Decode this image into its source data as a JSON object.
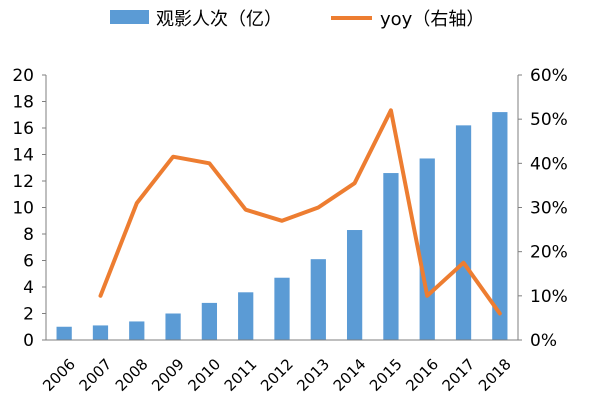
{
  "chart_data": {
    "type": "bar",
    "categories": [
      "2006",
      "2007",
      "2008",
      "2009",
      "2010",
      "2011",
      "2012",
      "2013",
      "2014",
      "2015",
      "2016",
      "2017",
      "2018"
    ],
    "series": [
      {
        "name": "观影人次（亿）",
        "type": "bar",
        "axis": "left",
        "color": "#5B9BD5",
        "values": [
          1.0,
          1.1,
          1.4,
          2.0,
          2.8,
          3.6,
          4.7,
          6.1,
          8.3,
          12.6,
          13.7,
          16.2,
          17.2
        ]
      },
      {
        "name": "yoy（右轴）",
        "type": "line",
        "axis": "right",
        "color": "#ED7D31",
        "values": [
          null,
          0.1,
          0.31,
          0.415,
          0.4,
          0.295,
          0.27,
          0.3,
          0.355,
          0.52,
          0.1,
          0.175,
          0.06
        ]
      }
    ],
    "y_left": {
      "min": 0,
      "max": 20,
      "ticks": [
        "0",
        "2",
        "4",
        "6",
        "8",
        "10",
        "12",
        "14",
        "16",
        "18",
        "20"
      ]
    },
    "y_right": {
      "min": 0,
      "max": 0.6,
      "ticks": [
        "0%",
        "10%",
        "20%",
        "30%",
        "40%",
        "50%",
        "60%"
      ]
    },
    "legend": {
      "position": "top",
      "items": [
        "观影人次（亿）",
        "yoy（右轴）"
      ]
    },
    "grid": false,
    "title": "",
    "xlabel": "",
    "ylabel": ""
  }
}
